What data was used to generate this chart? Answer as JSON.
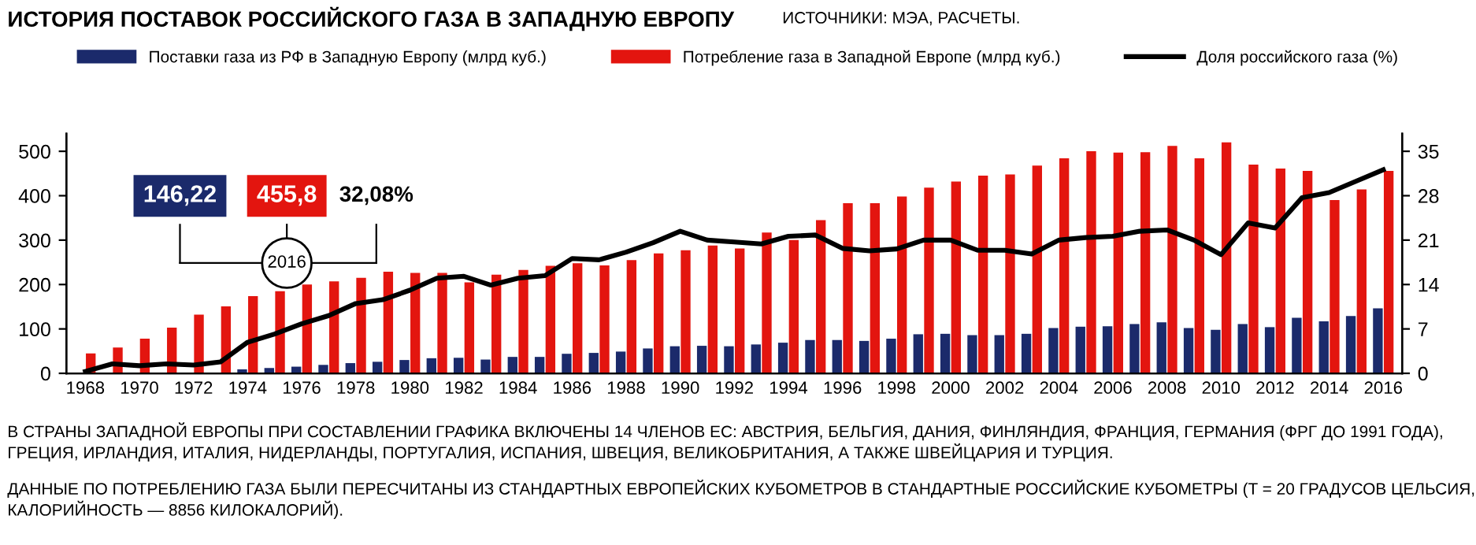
{
  "chart_data": {
    "type": "bar",
    "title": "ИСТОРИЯ ПОСТАВОК РОССИЙСКОГО ГАЗА В ЗАПАДНУЮ ЕВРОПУ",
    "subtitle": "ИСТОЧНИКИ: МЭА, РАСЧЕТЫ.",
    "categories": [
      "1968",
      null,
      "1970",
      null,
      "1972",
      null,
      "1974",
      null,
      "1976",
      null,
      "1978",
      null,
      "1980",
      null,
      "1982",
      null,
      "1984",
      null,
      "1986",
      null,
      "1988",
      null,
      "1990",
      null,
      "1992",
      null,
      "1994",
      null,
      "1996",
      null,
      "1998",
      null,
      "2000",
      null,
      "2002",
      null,
      "2004",
      null,
      "2006",
      null,
      "2008",
      null,
      "2010",
      null,
      "2012",
      null,
      "2014",
      null,
      "2016"
    ],
    "series": [
      {
        "name": "Поставки газа из РФ в Западную Европу (млрд куб.)",
        "color": "#1b2a6b",
        "values": [
          0,
          0,
          1,
          2,
          2,
          null,
          9,
          12,
          15,
          19,
          23,
          26,
          30,
          34,
          35,
          31,
          37,
          37,
          44,
          46,
          49,
          56,
          61,
          62,
          61,
          65,
          69,
          75,
          75,
          73,
          78,
          88,
          89,
          86,
          86,
          89,
          102,
          105,
          106,
          111,
          115,
          102,
          98,
          111,
          104,
          125,
          117,
          129,
          146.22
        ]
      },
      {
        "name": "Потребление газа в Западной Европе (млрд куб.)",
        "color": "#e3150f",
        "values": [
          45,
          58,
          78,
          103,
          132,
          151,
          174,
          185,
          200,
          207,
          215,
          229,
          226,
          226,
          205,
          222,
          233,
          242,
          248,
          243,
          255,
          270,
          277,
          288,
          281,
          317,
          300,
          345,
          383,
          383,
          398,
          418,
          432,
          445,
          448,
          468,
          484,
          500,
          497,
          498,
          512,
          484,
          520,
          470,
          461,
          456,
          390,
          414,
          455.8
        ]
      },
      {
        "name": "Доля российского газа (%)",
        "type": "line",
        "axis": "y2",
        "color": "#000000",
        "values": [
          0.3,
          1.5,
          1.2,
          1.5,
          1.3,
          1.8,
          4.9,
          6.2,
          7.8,
          9.1,
          11.0,
          11.6,
          13.1,
          15.0,
          15.3,
          13.9,
          15.0,
          15.4,
          18.1,
          17.9,
          19.1,
          20.6,
          22.4,
          21.0,
          20.7,
          20.4,
          21.6,
          21.8,
          19.7,
          19.3,
          19.6,
          21.0,
          21.0,
          19.4,
          19.4,
          18.8,
          21.0,
          21.4,
          21.6,
          22.4,
          22.6,
          21.0,
          18.7,
          23.7,
          22.9,
          27.7,
          28.5,
          30.3,
          32.08
        ]
      }
    ],
    "ylim": [
      0,
      540
    ],
    "yticks": [
      0,
      100,
      200,
      300,
      400,
      500
    ],
    "y2lim": [
      0,
      37.8
    ],
    "y2ticks": [
      0,
      7,
      14,
      21,
      28,
      35
    ],
    "grid": false,
    "legend": "top",
    "annotations": [
      "146,22",
      "455,8",
      "32,08%",
      "2016",
      "В СТРАНЫ ЗАПАДНОЙ ЕВРОПЫ ПРИ СОСТАВЛЕНИИ ГРАФИКА ВКЛЮЧЕНЫ 14 ЧЛЕНОВ ЕС: АВСТРИЯ, БЕЛЬГИЯ, ДАНИЯ, ФИНЛЯНДИЯ, ФРАНЦИЯ, ГЕРМАНИЯ (ФРГ ДО 1991 ГОДА), ГРЕЦИЯ, ИРЛАНДИЯ, ИТАЛИЯ, НИДЕРЛАНДЫ, ПОРТУГАЛИЯ, ИСПАНИЯ, ШВЕЦИЯ, ВЕЛИКОБРИТАНИЯ, А ТАКЖЕ ШВЕЙЦАРИЯ И ТУРЦИЯ.",
      "ДАННЫЕ ПО ПОТРЕБЛЕНИЮ ГАЗА БЫЛИ ПЕРЕСЧИТАНЫ ИЗ СТАНДАРТНЫХ ЕВРОПЕЙСКИХ КУБОМЕТРОВ В СТАНДАРТНЫЕ РОССИЙСКИЕ КУБОМЕТРЫ (T = 20 ГРАДУСОВ ЦЕЛЬСИЯ, КАЛОРИЙНОСТЬ — 8856 КИЛОКАЛОРИЙ)."
    ]
  }
}
